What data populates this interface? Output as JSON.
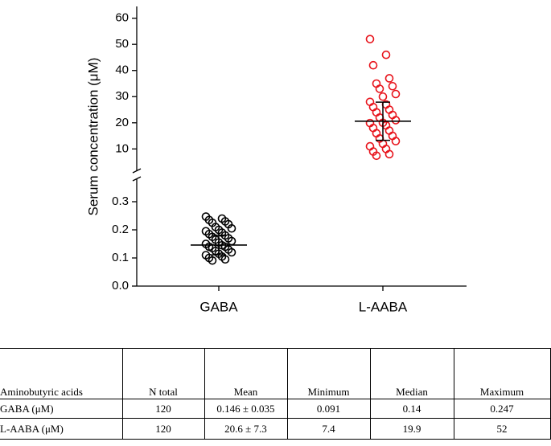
{
  "chart_data": {
    "type": "strip",
    "y_label": "Serum concentration (μM)",
    "categories": [
      "GABA",
      "L-AABA"
    ],
    "axis_segments": [
      {
        "ylim": [
          0,
          0.38
        ],
        "yticks": [
          {
            "value": 0,
            "label": "0.0"
          },
          0.1,
          0.2,
          0.3
        ]
      },
      {
        "ylim": [
          1.5,
          64.5
        ],
        "yticks": [
          10,
          20,
          30,
          40,
          50,
          60
        ]
      }
    ],
    "groups": [
      {
        "segment": 0,
        "color": "#000000",
        "mean": 0.146,
        "sd": 0.035,
        "values": [
          0.247,
          0.24,
          0.235,
          0.23,
          0.225,
          0.22,
          0.21,
          0.205,
          0.2,
          0.195,
          0.19,
          0.185,
          0.18,
          0.175,
          0.17,
          0.165,
          0.16,
          0.155,
          0.15,
          0.145,
          0.14,
          0.14,
          0.135,
          0.13,
          0.125,
          0.12,
          0.115,
          0.11,
          0.105,
          0.1,
          0.095,
          0.091
        ]
      },
      {
        "segment": 1,
        "color": "#e8141c",
        "mean": 20.6,
        "sd": 7.3,
        "values": [
          52,
          46,
          42,
          37,
          35,
          34,
          33,
          31,
          30,
          28,
          27,
          26,
          25,
          24,
          23,
          22,
          21,
          20,
          19.9,
          19,
          18,
          17,
          16,
          15,
          14,
          13,
          12,
          11,
          10,
          9,
          8,
          7.4
        ]
      }
    ]
  },
  "table": {
    "header": [
      "Aminobutyric acids",
      "N total",
      "Mean",
      "Minimum",
      "Median",
      "Maximum"
    ],
    "rows": [
      [
        "GABA  (μM)",
        "120",
        "0.146 ± 0.035",
        "0.091",
        "0.14",
        "0.247"
      ],
      [
        "L-AABA  (μM)",
        "120",
        "20.6 ± 7.3",
        "7.4",
        "19.9",
        "52"
      ]
    ]
  }
}
